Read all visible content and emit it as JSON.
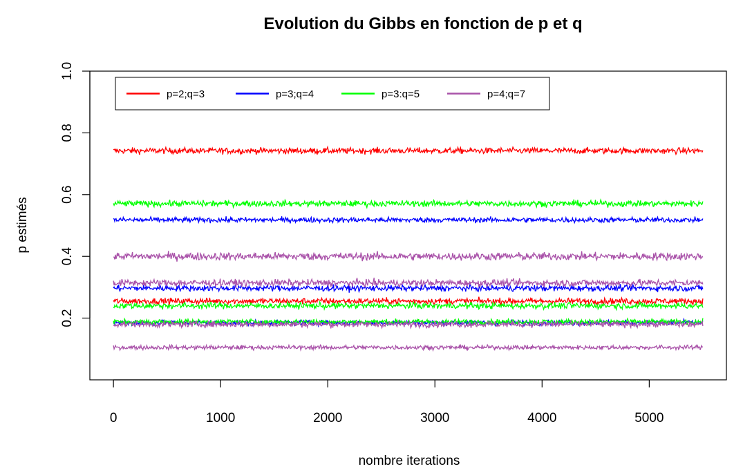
{
  "chart_data": {
    "type": "line",
    "title": "Evolution du Gibbs en fonction de p et q",
    "xlabel": "nombre iterations",
    "ylabel": "p estimés",
    "xlim": [
      -220,
      5720
    ],
    "ylim": [
      0.0,
      1.0
    ],
    "x_ticks": [
      "0",
      "1000",
      "2000",
      "3000",
      "4000",
      "5000"
    ],
    "y_ticks": [
      "0.2",
      "0.4",
      "0.6",
      "0.8",
      "1.0"
    ],
    "x_tick_values": [
      0,
      1000,
      2000,
      3000,
      4000,
      5000
    ],
    "y_tick_values": [
      0.2,
      0.4,
      0.6,
      0.8,
      1.0
    ],
    "x_range": [
      0,
      5500
    ],
    "legend_position": "top-left",
    "series": [
      {
        "name": "p=2;q=3",
        "color": "#ff0000",
        "traces": [
          {
            "mean": 0.742,
            "noise": 0.007
          },
          {
            "mean": 0.255,
            "noise": 0.007
          }
        ]
      },
      {
        "name": "p=3;q=4",
        "color": "#0000ff",
        "traces": [
          {
            "mean": 0.518,
            "noise": 0.006
          },
          {
            "mean": 0.297,
            "noise": 0.007
          },
          {
            "mean": 0.185,
            "noise": 0.006
          }
        ]
      },
      {
        "name": "p=3:q=5",
        "color": "#00ff00",
        "traces": [
          {
            "mean": 0.571,
            "noise": 0.007
          },
          {
            "mean": 0.24,
            "noise": 0.007
          },
          {
            "mean": 0.188,
            "noise": 0.006
          }
        ]
      },
      {
        "name": "p=4;q=7",
        "color": "#a952a9",
        "traces": [
          {
            "mean": 0.4,
            "noise": 0.009
          },
          {
            "mean": 0.314,
            "noise": 0.008
          },
          {
            "mean": 0.18,
            "noise": 0.007
          },
          {
            "mean": 0.105,
            "noise": 0.005
          }
        ]
      }
    ]
  }
}
